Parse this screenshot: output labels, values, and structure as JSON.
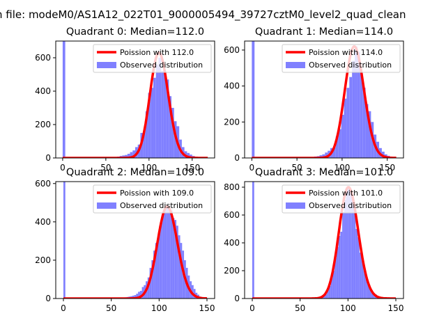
{
  "figure": {
    "suptitle": "n file: modeM0/AS1A12_022T01_9000005494_39727cztM0_level2_quad_clean"
  },
  "chart_data": [
    {
      "type": "bar",
      "title": "Quadrant 0: Median=112.0",
      "xlim": [
        -8,
        176
      ],
      "ylim": [
        0,
        700
      ],
      "xticks": [
        0,
        50,
        100,
        150
      ],
      "yticks": [
        0,
        200,
        400,
        600
      ],
      "legend": {
        "placement": "top-right",
        "entries": [
          "Poission with 112.0",
          "Observed distribution"
        ]
      },
      "series": [
        {
          "name": "Poission with 112.0",
          "kind": "line",
          "color": "#ff0000",
          "lambda": 112.0,
          "peak": 630
        },
        {
          "name": "Observed distribution",
          "kind": "histogram",
          "color": "#8080ff",
          "bins": [
            [
              0,
              3,
              700
            ],
            [
              60,
              63,
              5
            ],
            [
              63,
              66,
              8
            ],
            [
              66,
              69,
              12
            ],
            [
              69,
              72,
              15
            ],
            [
              72,
              75,
              18
            ],
            [
              75,
              78,
              25
            ],
            [
              78,
              81,
              35
            ],
            [
              81,
              84,
              45
            ],
            [
              84,
              87,
              65
            ],
            [
              87,
              90,
              80
            ],
            [
              90,
              93,
              150
            ],
            [
              93,
              96,
              160
            ],
            [
              96,
              99,
              280
            ],
            [
              99,
              102,
              390
            ],
            [
              102,
              105,
              420
            ],
            [
              105,
              108,
              480
            ],
            [
              108,
              111,
              560
            ],
            [
              111,
              114,
              600
            ],
            [
              114,
              117,
              520
            ],
            [
              117,
              120,
              520
            ],
            [
              120,
              123,
              470
            ],
            [
              123,
              126,
              370
            ],
            [
              126,
              129,
              300
            ],
            [
              129,
              132,
              220
            ],
            [
              132,
              135,
              190
            ],
            [
              135,
              138,
              110
            ],
            [
              138,
              141,
              65
            ],
            [
              141,
              144,
              40
            ],
            [
              144,
              147,
              30
            ],
            [
              147,
              150,
              20
            ],
            [
              150,
              153,
              12
            ],
            [
              153,
              156,
              6
            ]
          ]
        }
      ]
    },
    {
      "type": "bar",
      "title": "Quadrant 1: Median=114.0",
      "xlim": [
        -8,
        168
      ],
      "ylim": [
        0,
        650
      ],
      "xticks": [
        0,
        50,
        100,
        150
      ],
      "yticks": [
        0,
        200,
        400,
        600
      ],
      "legend": {
        "placement": "top-right",
        "entries": [
          "Poission with 114.0",
          "Observed distribution"
        ]
      },
      "series": [
        {
          "name": "Poission with 114.0",
          "kind": "line",
          "color": "#ff0000",
          "lambda": 114.0,
          "peak": 620
        },
        {
          "name": "Observed distribution",
          "kind": "histogram",
          "color": "#8080ff",
          "bins": [
            [
              0,
              3,
              650
            ],
            [
              66,
              69,
              5
            ],
            [
              69,
              72,
              8
            ],
            [
              72,
              75,
              10
            ],
            [
              75,
              78,
              15
            ],
            [
              78,
              81,
              20
            ],
            [
              81,
              84,
              30
            ],
            [
              84,
              87,
              40
            ],
            [
              87,
              90,
              55
            ],
            [
              90,
              93,
              60
            ],
            [
              93,
              96,
              120
            ],
            [
              96,
              99,
              160
            ],
            [
              99,
              102,
              240
            ],
            [
              102,
              105,
              330
            ],
            [
              105,
              108,
              390
            ],
            [
              108,
              111,
              450
            ],
            [
              111,
              114,
              540
            ],
            [
              114,
              117,
              620
            ],
            [
              117,
              120,
              590
            ],
            [
              120,
              123,
              470
            ],
            [
              123,
              126,
              390
            ],
            [
              126,
              129,
              300
            ],
            [
              129,
              132,
              260
            ],
            [
              132,
              135,
              200
            ],
            [
              135,
              138,
              130
            ],
            [
              138,
              141,
              90
            ],
            [
              141,
              144,
              55
            ],
            [
              144,
              147,
              35
            ],
            [
              147,
              150,
              20
            ],
            [
              150,
              153,
              12
            ],
            [
              153,
              156,
              5
            ]
          ]
        }
      ]
    },
    {
      "type": "bar",
      "title": "Quadrant 2: Median=109.0",
      "xlim": [
        -8,
        158
      ],
      "ylim": [
        0,
        610
      ],
      "xticks": [
        0,
        50,
        100,
        150
      ],
      "yticks": [
        0,
        200,
        400,
        600
      ],
      "legend": {
        "placement": "top-right",
        "entries": [
          "Poission with 109.0",
          "Observed distribution"
        ]
      },
      "series": [
        {
          "name": "Poission with 109.0",
          "kind": "line",
          "color": "#ff0000",
          "lambda": 109.0,
          "peak": 480
        },
        {
          "name": "Observed distribution",
          "kind": "histogram",
          "color": "#8080ff",
          "bins": [
            [
              0,
              2,
              610
            ],
            [
              60,
              62,
              3
            ],
            [
              62,
              64,
              5
            ],
            [
              64,
              66,
              6
            ],
            [
              66,
              68,
              8
            ],
            [
              68,
              70,
              10
            ],
            [
              70,
              72,
              12
            ],
            [
              72,
              74,
              15
            ],
            [
              74,
              76,
              18
            ],
            [
              76,
              78,
              25
            ],
            [
              78,
              80,
              35
            ],
            [
              80,
              82,
              40
            ],
            [
              82,
              84,
              60
            ],
            [
              84,
              86,
              70
            ],
            [
              86,
              88,
              90
            ],
            [
              88,
              90,
              110
            ],
            [
              90,
              92,
              160
            ],
            [
              92,
              94,
              200
            ],
            [
              94,
              96,
              250
            ],
            [
              96,
              98,
              290
            ],
            [
              98,
              100,
              320
            ],
            [
              100,
              102,
              380
            ],
            [
              102,
              104,
              420
            ],
            [
              104,
              106,
              450
            ],
            [
              106,
              108,
              470
            ],
            [
              108,
              110,
              480
            ],
            [
              110,
              112,
              470
            ],
            [
              112,
              114,
              460
            ],
            [
              114,
              116,
              420
            ],
            [
              116,
              118,
              410
            ],
            [
              118,
              120,
              380
            ],
            [
              120,
              122,
              330
            ],
            [
              122,
              124,
              290
            ],
            [
              124,
              126,
              250
            ],
            [
              126,
              128,
              200
            ],
            [
              128,
              130,
              160
            ],
            [
              130,
              132,
              120
            ],
            [
              132,
              134,
              90
            ],
            [
              134,
              136,
              70
            ],
            [
              136,
              138,
              50
            ],
            [
              138,
              140,
              30
            ],
            [
              140,
              142,
              20
            ],
            [
              142,
              144,
              10
            ],
            [
              144,
              146,
              6
            ],
            [
              146,
              148,
              3
            ]
          ]
        }
      ]
    },
    {
      "type": "bar",
      "title": "Quadrant 3: Median=101.0",
      "xlim": [
        -8,
        158
      ],
      "ylim": [
        0,
        840
      ],
      "xticks": [
        0,
        50,
        100,
        150
      ],
      "yticks": [
        0,
        200,
        400,
        600,
        800
      ],
      "legend": {
        "placement": "top-right",
        "entries": [
          "Poission with 101.0",
          "Observed distribution"
        ]
      },
      "series": [
        {
          "name": "Poission with 101.0",
          "kind": "line",
          "color": "#ff0000",
          "lambda": 101.0,
          "peak": 800
        },
        {
          "name": "Observed distribution",
          "kind": "histogram",
          "color": "#8080ff",
          "bins": [
            [
              0,
              2,
              840
            ],
            [
              60,
              62,
              3
            ],
            [
              62,
              64,
              4
            ],
            [
              64,
              66,
              5
            ],
            [
              66,
              68,
              6
            ],
            [
              68,
              70,
              8
            ],
            [
              70,
              72,
              10
            ],
            [
              72,
              74,
              15
            ],
            [
              74,
              76,
              20
            ],
            [
              76,
              78,
              30
            ],
            [
              78,
              80,
              60
            ],
            [
              80,
              82,
              90
            ],
            [
              82,
              84,
              150
            ],
            [
              84,
              86,
              200
            ],
            [
              86,
              88,
              290
            ],
            [
              88,
              90,
              370
            ],
            [
              90,
              92,
              450
            ],
            [
              92,
              94,
              480
            ],
            [
              94,
              96,
              620
            ],
            [
              96,
              98,
              710
            ],
            [
              98,
              100,
              780
            ],
            [
              100,
              102,
              790
            ],
            [
              102,
              104,
              770
            ],
            [
              104,
              106,
              710
            ],
            [
              106,
              108,
              640
            ],
            [
              108,
              110,
              500
            ],
            [
              110,
              112,
              440
            ],
            [
              112,
              114,
              330
            ],
            [
              114,
              116,
              300
            ],
            [
              116,
              118,
              230
            ],
            [
              118,
              120,
              170
            ],
            [
              120,
              122,
              120
            ],
            [
              122,
              124,
              80
            ],
            [
              124,
              126,
              60
            ],
            [
              126,
              128,
              40
            ],
            [
              128,
              130,
              30
            ],
            [
              130,
              132,
              20
            ],
            [
              132,
              134,
              12
            ],
            [
              134,
              136,
              8
            ],
            [
              136,
              138,
              5
            ],
            [
              138,
              140,
              3
            ]
          ]
        }
      ]
    }
  ]
}
